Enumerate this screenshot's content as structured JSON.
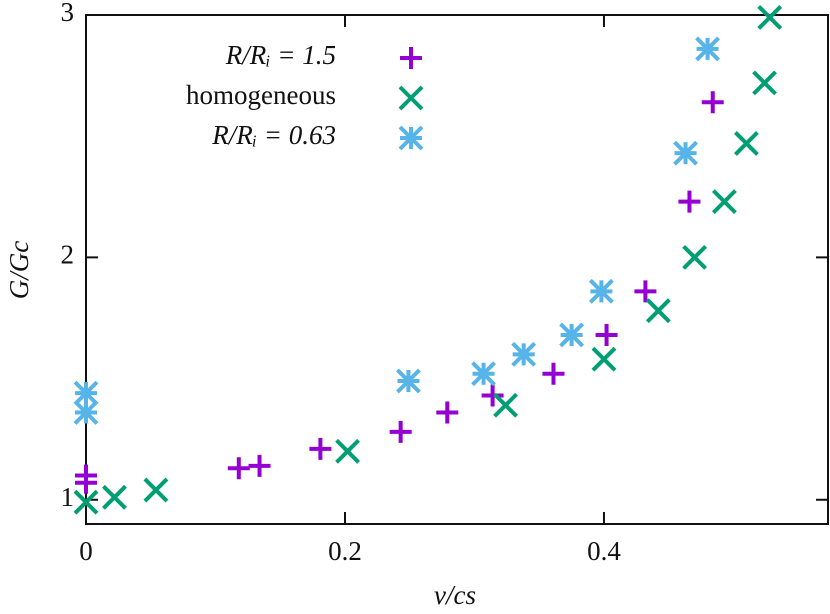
{
  "chart_data": {
    "type": "scatter",
    "xlabel": "v/cs",
    "ylabel": "G/Gc",
    "xlim": [
      0,
      0.573
    ],
    "ylim": [
      0.9,
      3
    ],
    "xticks": [
      0,
      0.2,
      0.4
    ],
    "yticks": [
      1,
      2,
      3
    ],
    "series": [
      {
        "name": "R/Rᵢ = 1.5",
        "color": "#9400d3",
        "marker": "plus",
        "x": [
          0,
          0,
          0.118,
          0.134,
          0.181,
          0.243,
          0.279,
          0.314,
          0.361,
          0.402,
          0.432,
          0.466,
          0.484
        ],
        "values": [
          1.1,
          1.07,
          1.13,
          1.14,
          1.21,
          1.28,
          1.36,
          1.43,
          1.52,
          1.68,
          1.86,
          2.23,
          2.64
        ]
      },
      {
        "name": "homogeneous",
        "color": "#009e73",
        "marker": "cross",
        "x": [
          0,
          0.022,
          0.054,
          0.202,
          0.324,
          0.4,
          0.442,
          0.47,
          0.493,
          0.51,
          0.524,
          0.528
        ],
        "values": [
          0.99,
          1.01,
          1.04,
          1.2,
          1.39,
          1.58,
          1.78,
          2.0,
          2.23,
          2.47,
          2.72,
          2.99
        ]
      },
      {
        "name": "R/Rᵢ = 0.63",
        "color": "#56b4e9",
        "marker": "star",
        "x": [
          0,
          0,
          0.249,
          0.307,
          0.338,
          0.375,
          0.398,
          0.463,
          0.48
        ],
        "values": [
          1.44,
          1.36,
          1.49,
          1.52,
          1.6,
          1.68,
          1.86,
          2.43,
          2.86
        ]
      }
    ]
  }
}
